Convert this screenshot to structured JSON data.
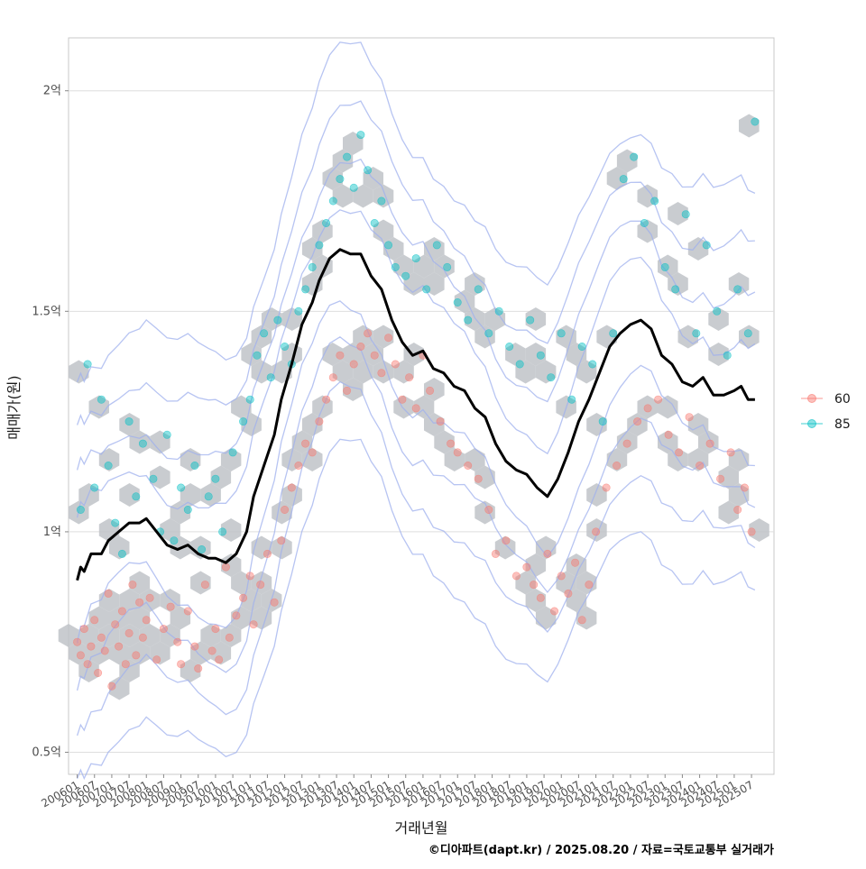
{
  "chart_data": {
    "type": "scatter",
    "xlabel": "거래년월",
    "ylabel": "매매가(원)",
    "caption": "©디아파트(dapt.kr) / 2025.08.20 / 자료=국토교통부 실거래가",
    "x_tick_labels": [
      "200601",
      "200607",
      "200701",
      "200707",
      "200801",
      "200807",
      "200901",
      "200907",
      "201001",
      "201007",
      "201101",
      "201107",
      "201201",
      "201207",
      "201301",
      "201307",
      "201401",
      "201407",
      "201501",
      "201507",
      "201601",
      "201607",
      "201701",
      "201707",
      "201801",
      "201807",
      "201901",
      "201907",
      "202001",
      "202007",
      "202101",
      "202107",
      "202201",
      "202207",
      "202301",
      "202307",
      "202401",
      "202407",
      "202501",
      "202507"
    ],
    "y_ticks": [
      {
        "value": 0.5,
        "label": "0.5억"
      },
      {
        "value": 1.0,
        "label": "1억"
      },
      {
        "value": 1.5,
        "label": "1.5억"
      },
      {
        "value": 2.0,
        "label": "2억"
      }
    ],
    "xlim": [
      2005.75,
      2026.15
    ],
    "ylim": [
      0.45,
      2.12
    ],
    "legend": {
      "position": "right",
      "entries": [
        {
          "label": "60",
          "color": "#F8766D"
        },
        {
          "label": "85",
          "color": "#00BFC4"
        }
      ]
    },
    "colors": {
      "hex_fill": "#bfc3c8",
      "trend_line": "#000000",
      "contour": "#9fb0ee",
      "grid": "#dedede",
      "panel_border": "#c8c8c8"
    },
    "series": [
      {
        "name": "60",
        "color": "#F8766D",
        "x": [
          2006.0,
          2006.1,
          2006.2,
          2006.3,
          2006.4,
          2006.5,
          2006.6,
          2006.7,
          2006.8,
          2006.9,
          2007.0,
          2007.1,
          2007.2,
          2007.3,
          2007.4,
          2007.5,
          2007.6,
          2007.7,
          2007.8,
          2007.9,
          2008.0,
          2008.1,
          2008.3,
          2008.5,
          2008.7,
          2008.9,
          2009.0,
          2009.2,
          2009.4,
          2009.5,
          2009.7,
          2009.9,
          2010.0,
          2010.1,
          2010.3,
          2010.4,
          2010.6,
          2010.8,
          2011.0,
          2011.1,
          2011.3,
          2011.5,
          2011.7,
          2011.9,
          2012.0,
          2012.2,
          2012.4,
          2012.6,
          2012.8,
          2013.0,
          2013.2,
          2013.4,
          2013.6,
          2013.8,
          2014.0,
          2014.2,
          2014.4,
          2014.6,
          2014.8,
          2015.0,
          2015.2,
          2015.4,
          2015.6,
          2015.8,
          2016.0,
          2016.2,
          2016.5,
          2016.8,
          2017.0,
          2017.3,
          2017.6,
          2017.9,
          2018.1,
          2018.4,
          2018.7,
          2019.0,
          2019.2,
          2019.4,
          2019.6,
          2019.8,
          2020.0,
          2020.2,
          2020.4,
          2020.6,
          2020.8,
          2021.0,
          2021.3,
          2021.6,
          2021.9,
          2022.2,
          2022.5,
          2022.8,
          2023.1,
          2023.4,
          2023.7,
          2024.0,
          2024.3,
          2024.6,
          2024.9,
          2025.1,
          2025.3,
          2025.5
        ],
        "y": [
          0.75,
          0.72,
          0.78,
          0.7,
          0.74,
          0.8,
          0.68,
          0.76,
          0.73,
          0.86,
          0.65,
          0.79,
          0.74,
          0.82,
          0.7,
          0.77,
          0.88,
          0.72,
          0.84,
          0.76,
          0.8,
          0.85,
          0.71,
          0.78,
          0.83,
          0.75,
          0.7,
          0.82,
          0.74,
          0.69,
          0.88,
          0.73,
          0.78,
          0.71,
          0.92,
          0.76,
          0.81,
          0.85,
          0.9,
          0.79,
          0.88,
          0.95,
          0.84,
          0.98,
          1.05,
          1.1,
          1.15,
          1.2,
          1.18,
          1.25,
          1.3,
          1.35,
          1.4,
          1.32,
          1.38,
          1.42,
          1.45,
          1.4,
          1.36,
          1.44,
          1.38,
          1.3,
          1.35,
          1.28,
          1.4,
          1.32,
          1.25,
          1.2,
          1.18,
          1.15,
          1.12,
          1.05,
          0.95,
          0.98,
          0.9,
          0.92,
          0.88,
          0.85,
          0.95,
          0.82,
          0.9,
          0.86,
          0.93,
          0.8,
          0.88,
          1.0,
          1.1,
          1.15,
          1.2,
          1.25,
          1.28,
          1.3,
          1.22,
          1.18,
          1.26,
          1.15,
          1.2,
          1.12,
          1.18,
          1.05,
          1.1,
          1.0
        ]
      },
      {
        "name": "85",
        "color": "#00BFC4",
        "x": [
          2006.1,
          2006.3,
          2006.5,
          2006.7,
          2006.9,
          2007.1,
          2007.3,
          2007.5,
          2007.7,
          2007.9,
          2008.2,
          2008.4,
          2008.6,
          2008.8,
          2009.0,
          2009.2,
          2009.4,
          2009.6,
          2009.8,
          2010.0,
          2010.2,
          2010.5,
          2010.8,
          2011.0,
          2011.2,
          2011.4,
          2011.6,
          2011.8,
          2012.0,
          2012.2,
          2012.4,
          2012.6,
          2012.8,
          2013.0,
          2013.2,
          2013.4,
          2013.6,
          2013.8,
          2014.0,
          2014.2,
          2014.4,
          2014.6,
          2014.8,
          2015.0,
          2015.2,
          2015.5,
          2015.8,
          2016.1,
          2016.4,
          2016.7,
          2017.0,
          2017.3,
          2017.6,
          2017.9,
          2018.2,
          2018.5,
          2018.8,
          2019.1,
          2019.4,
          2019.7,
          2020.0,
          2020.3,
          2020.6,
          2020.9,
          2021.2,
          2021.5,
          2021.8,
          2022.1,
          2022.4,
          2022.7,
          2023.0,
          2023.3,
          2023.6,
          2023.9,
          2024.2,
          2024.5,
          2024.8,
          2025.1,
          2025.4,
          2025.6
        ],
        "y": [
          1.05,
          1.38,
          1.1,
          1.3,
          1.15,
          1.02,
          0.95,
          1.25,
          1.08,
          1.2,
          1.12,
          1.0,
          1.22,
          0.98,
          1.1,
          1.05,
          1.15,
          0.96,
          1.08,
          1.12,
          1.0,
          1.18,
          1.25,
          1.3,
          1.4,
          1.45,
          1.35,
          1.48,
          1.42,
          1.38,
          1.5,
          1.55,
          1.6,
          1.65,
          1.7,
          1.75,
          1.8,
          1.85,
          1.78,
          1.9,
          1.82,
          1.7,
          1.75,
          1.65,
          1.6,
          1.58,
          1.62,
          1.55,
          1.65,
          1.6,
          1.52,
          1.48,
          1.55,
          1.45,
          1.5,
          1.42,
          1.38,
          1.48,
          1.4,
          1.35,
          1.45,
          1.3,
          1.42,
          1.38,
          1.25,
          1.45,
          1.8,
          1.85,
          1.7,
          1.75,
          1.6,
          1.55,
          1.72,
          1.45,
          1.65,
          1.5,
          1.4,
          1.55,
          1.45,
          1.93
        ]
      }
    ],
    "trend_line": {
      "x": [
        2006.0,
        2006.1,
        2006.2,
        2006.4,
        2006.7,
        2006.9,
        2007.2,
        2007.5,
        2007.8,
        2008.0,
        2008.3,
        2008.6,
        2008.9,
        2009.2,
        2009.5,
        2009.8,
        2010.0,
        2010.3,
        2010.6,
        2010.9,
        2011.1,
        2011.4,
        2011.7,
        2011.9,
        2012.2,
        2012.5,
        2012.8,
        2013.0,
        2013.3,
        2013.6,
        2013.9,
        2014.2,
        2014.5,
        2014.8,
        2015.1,
        2015.4,
        2015.7,
        2016.0,
        2016.3,
        2016.6,
        2016.9,
        2017.2,
        2017.5,
        2017.8,
        2018.1,
        2018.4,
        2018.7,
        2019.0,
        2019.3,
        2019.6,
        2019.9,
        2020.2,
        2020.5,
        2020.8,
        2021.1,
        2021.4,
        2021.7,
        2022.0,
        2022.3,
        2022.6,
        2022.9,
        2023.2,
        2023.5,
        2023.8,
        2024.1,
        2024.4,
        2024.7,
        2025.0,
        2025.2,
        2025.4,
        2025.6
      ],
      "y": [
        0.89,
        0.92,
        0.91,
        0.95,
        0.95,
        0.98,
        1.0,
        1.02,
        1.02,
        1.03,
        1.0,
        0.97,
        0.96,
        0.97,
        0.95,
        0.94,
        0.94,
        0.93,
        0.95,
        1.0,
        1.08,
        1.15,
        1.22,
        1.3,
        1.38,
        1.47,
        1.52,
        1.57,
        1.62,
        1.64,
        1.63,
        1.63,
        1.58,
        1.55,
        1.48,
        1.43,
        1.4,
        1.41,
        1.37,
        1.36,
        1.33,
        1.32,
        1.28,
        1.26,
        1.2,
        1.16,
        1.14,
        1.13,
        1.1,
        1.08,
        1.12,
        1.18,
        1.25,
        1.3,
        1.36,
        1.42,
        1.45,
        1.47,
        1.48,
        1.46,
        1.4,
        1.38,
        1.34,
        1.33,
        1.35,
        1.31,
        1.31,
        1.32,
        1.33,
        1.3,
        1.3
      ]
    }
  }
}
